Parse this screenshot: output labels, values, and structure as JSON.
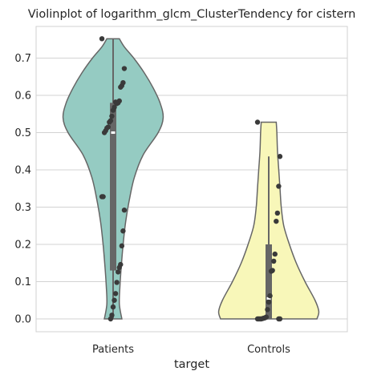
{
  "chart_data": {
    "type": "violin",
    "title": "Violinplot of logarithm_glcm_ClusterTendency for cistern",
    "xlabel": "target",
    "ylabel": "",
    "ylim": [
      -0.04,
      0.79
    ],
    "yticks": [
      "0.0",
      "0.1",
      "0.2",
      "0.3",
      "0.4",
      "0.5",
      "0.6",
      "0.7"
    ],
    "grid": "horizontal",
    "categories": [
      "Patients",
      "Controls"
    ],
    "colors": {
      "Patients": "#95cbc2",
      "Controls": "#f8f7b9",
      "outline": "#666666",
      "box": "#666666",
      "points": "#3a3a3a",
      "grid": "#d3d3d3"
    },
    "series": [
      {
        "category": "Patients",
        "points": [
          0.752,
          0.672,
          0.634,
          0.626,
          0.622,
          0.585,
          0.58,
          0.578,
          0.582,
          0.568,
          0.56,
          0.544,
          0.532,
          0.528,
          0.515,
          0.512,
          0.505,
          0.5,
          0.328,
          0.328,
          0.292,
          0.236,
          0.196,
          0.146,
          0.138,
          0.126,
          0.098,
          0.068,
          0.05,
          0.032,
          0.01,
          0.0
        ],
        "box": {
          "q1": 0.13,
          "median": 0.5,
          "q3": 0.58,
          "whisker_low": 0.0,
          "whisker_high": 0.752
        },
        "density": [
          [
            0.0,
            0.14
          ],
          [
            0.04,
            0.1
          ],
          [
            0.09,
            0.11
          ],
          [
            0.14,
            0.13
          ],
          [
            0.2,
            0.16
          ],
          [
            0.26,
            0.2
          ],
          [
            0.32,
            0.26
          ],
          [
            0.38,
            0.34
          ],
          [
            0.44,
            0.48
          ],
          [
            0.5,
            0.72
          ],
          [
            0.54,
            0.8
          ],
          [
            0.58,
            0.75
          ],
          [
            0.62,
            0.64
          ],
          [
            0.66,
            0.5
          ],
          [
            0.7,
            0.33
          ],
          [
            0.73,
            0.18
          ],
          [
            0.752,
            0.1
          ]
        ]
      },
      {
        "category": "Controls",
        "points": [
          0.528,
          0.436,
          0.356,
          0.284,
          0.262,
          0.174,
          0.155,
          0.13,
          0.128,
          0.062,
          0.045,
          0.025,
          0.005,
          0.003,
          0.002,
          0.001,
          0.0,
          0.0,
          0.0,
          0.0,
          0.0,
          0.0
        ],
        "box": {
          "q1": 0.0,
          "median": 0.055,
          "q3": 0.2,
          "whisker_low": 0.0,
          "whisker_high": 0.436
        },
        "density": [
          [
            0.0,
            0.77
          ],
          [
            0.02,
            0.8
          ],
          [
            0.05,
            0.74
          ],
          [
            0.1,
            0.58
          ],
          [
            0.15,
            0.44
          ],
          [
            0.2,
            0.33
          ],
          [
            0.25,
            0.24
          ],
          [
            0.3,
            0.2
          ],
          [
            0.35,
            0.18
          ],
          [
            0.4,
            0.16
          ],
          [
            0.45,
            0.14
          ],
          [
            0.5,
            0.13
          ],
          [
            0.528,
            0.12
          ]
        ]
      }
    ]
  }
}
